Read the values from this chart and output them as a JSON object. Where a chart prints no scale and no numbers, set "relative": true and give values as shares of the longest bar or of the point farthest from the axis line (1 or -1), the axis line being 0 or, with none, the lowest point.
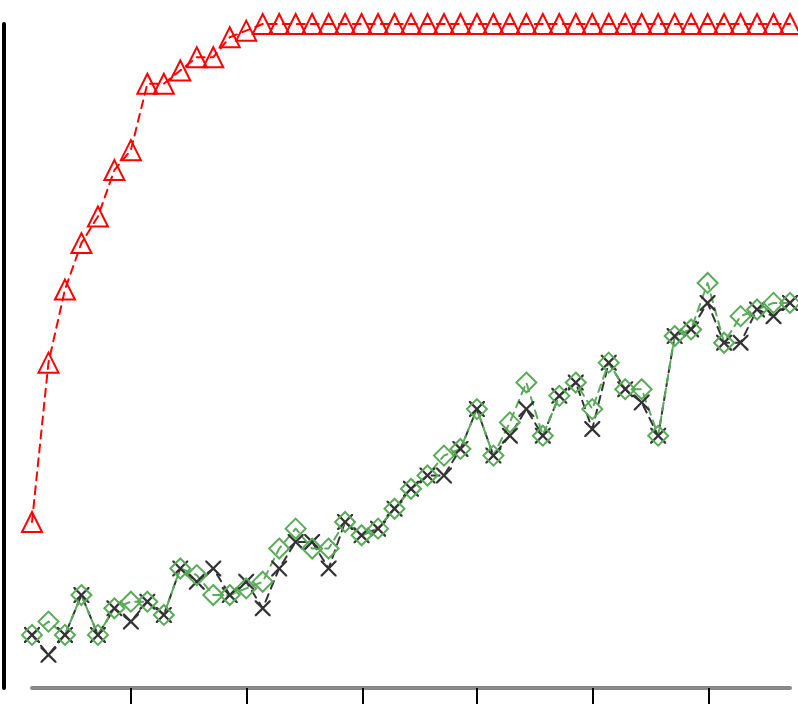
{
  "chart_data": {
    "type": "line",
    "relative": true,
    "grid": false,
    "categories": [
      null,
      null,
      null,
      null,
      null,
      null,
      null,
      null,
      null,
      null,
      null,
      null,
      null,
      null,
      null,
      null,
      null,
      null,
      null,
      null,
      null,
      null,
      null,
      null,
      null,
      null,
      null,
      null,
      null,
      null,
      null,
      null,
      null,
      null,
      null,
      null,
      null,
      null,
      null,
      null,
      null,
      null,
      null,
      null,
      null,
      null,
      null
    ],
    "series": [
      {
        "color": "#ff0000",
        "marker": "triangle",
        "line_style": "dashed",
        "values": [
          0.25,
          0.49,
          0.6,
          0.67,
          0.71,
          0.78,
          0.81,
          0.91,
          0.91,
          0.93,
          0.95,
          0.95,
          0.98,
          0.99,
          1,
          1,
          1,
          1,
          1,
          1,
          1,
          1,
          1,
          1,
          1,
          1,
          1,
          1,
          1,
          1,
          1,
          1,
          1,
          1,
          1,
          1,
          1,
          1,
          1,
          1,
          1,
          1,
          1,
          1,
          1,
          1,
          1
        ]
      },
      {
        "color": "#333333",
        "marker": "cross",
        "line_style": "dashed",
        "values": [
          0.08,
          0.05,
          0.08,
          0.14,
          0.08,
          0.12,
          0.1,
          0.13,
          0.11,
          0.18,
          0.16,
          0.18,
          0.14,
          0.16,
          0.12,
          0.18,
          0.22,
          0.22,
          0.18,
          0.25,
          0.23,
          0.24,
          0.27,
          0.3,
          0.32,
          0.32,
          0.36,
          0.42,
          0.35,
          0.38,
          0.42,
          0.38,
          0.44,
          0.46,
          0.39,
          0.49,
          0.45,
          0.43,
          0.38,
          0.53,
          0.54,
          0.58,
          0.52,
          0.52,
          0.57,
          0.56,
          0.58
        ]
      },
      {
        "color": "#5aaa5a",
        "marker": "diamond",
        "line_style": "dashed",
        "values": [
          0.08,
          0.1,
          0.08,
          0.14,
          0.08,
          0.12,
          0.13,
          0.13,
          0.11,
          0.18,
          0.17,
          0.14,
          0.14,
          0.15,
          0.16,
          0.21,
          0.24,
          0.21,
          0.21,
          0.25,
          0.23,
          0.24,
          0.27,
          0.3,
          0.32,
          0.35,
          0.36,
          0.42,
          0.35,
          0.4,
          0.46,
          0.38,
          0.44,
          0.46,
          0.42,
          0.49,
          0.45,
          0.45,
          0.38,
          0.53,
          0.54,
          0.61,
          0.52,
          0.56,
          0.57,
          0.58,
          0.58
        ]
      }
    ]
  }
}
